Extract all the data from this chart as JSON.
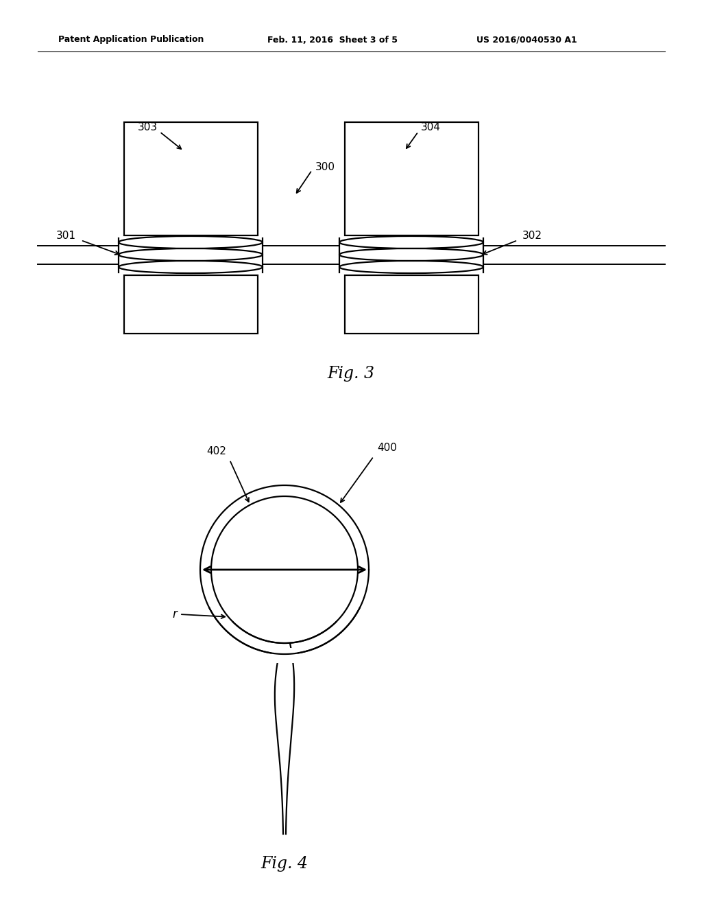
{
  "bg_color": "#ffffff",
  "line_color": "#000000",
  "header_left": "Patent Application Publication",
  "header_mid": "Feb. 11, 2016  Sheet 3 of 5",
  "header_right": "US 2016/0040530 A1",
  "fig3_caption": "Fig. 3",
  "fig4_caption": "Fig. 4",
  "label_300": "300",
  "label_301": "301",
  "label_302": "302",
  "label_303": "303",
  "label_304": "304",
  "label_400": "400",
  "label_402": "402",
  "label_r": "r"
}
